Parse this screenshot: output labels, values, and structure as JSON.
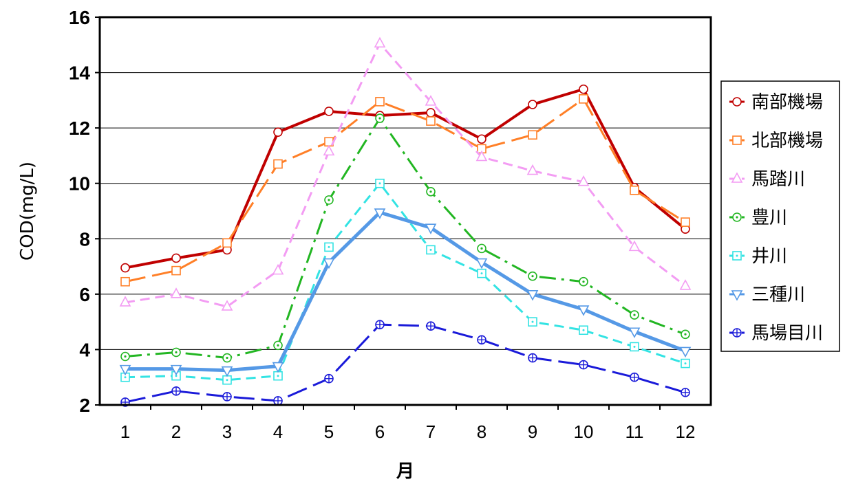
{
  "chart_data": {
    "type": "line",
    "xlabel": "月",
    "ylabel": "COD(mg/L)",
    "ylim": [
      2,
      16
    ],
    "yticks": [
      "2",
      "4",
      "6",
      "8",
      "10",
      "12",
      "14",
      "16"
    ],
    "categories": [
      "1",
      "2",
      "3",
      "4",
      "5",
      "6",
      "7",
      "8",
      "9",
      "10",
      "11",
      "12"
    ],
    "grid": "horizontal",
    "legend_position": "right",
    "series": [
      {
        "name": "南部機場",
        "color": "#c00000",
        "marker": "circle",
        "dash": "solid",
        "values": [
          6.95,
          7.3,
          7.6,
          11.85,
          12.6,
          12.45,
          12.55,
          11.6,
          12.85,
          13.4,
          9.85,
          8.35
        ]
      },
      {
        "name": "北部機場",
        "color": "#ff7f27",
        "marker": "square",
        "dash": "longdash",
        "values": [
          6.45,
          6.85,
          7.85,
          10.7,
          11.5,
          12.95,
          12.25,
          11.25,
          11.75,
          13.05,
          9.75,
          8.6
        ]
      },
      {
        "name": "馬踏川",
        "color": "#f39cf3",
        "marker": "triangle-up",
        "dash": "dash",
        "values": [
          5.7,
          6.0,
          5.55,
          6.85,
          11.15,
          15.05,
          12.95,
          10.95,
          10.45,
          10.05,
          7.7,
          6.3
        ]
      },
      {
        "name": "豊川",
        "color": "#22b622",
        "marker": "circle-dot",
        "dash": "dashdot",
        "values": [
          3.75,
          3.9,
          3.7,
          4.15,
          9.4,
          12.35,
          9.7,
          7.65,
          6.65,
          6.45,
          5.25,
          4.55
        ]
      },
      {
        "name": "井川",
        "color": "#33e3e3",
        "marker": "square-dot",
        "dash": "dash",
        "values": [
          3.0,
          3.05,
          2.9,
          3.05,
          7.7,
          10.0,
          7.6,
          6.75,
          5.0,
          4.7,
          4.1,
          3.5
        ]
      },
      {
        "name": "三種川",
        "color": "#5599e6",
        "marker": "triangle-down",
        "dash": "solid",
        "values": [
          3.3,
          3.3,
          3.25,
          3.4,
          7.15,
          8.95,
          8.4,
          7.15,
          6.0,
          5.45,
          4.65,
          3.95
        ]
      },
      {
        "name": "馬場目川",
        "color": "#1a1ad9",
        "marker": "circle-plus",
        "dash": "longdash",
        "values": [
          2.1,
          2.5,
          2.3,
          2.15,
          2.95,
          4.9,
          4.85,
          4.35,
          3.7,
          3.45,
          3.0,
          2.45
        ]
      }
    ]
  }
}
